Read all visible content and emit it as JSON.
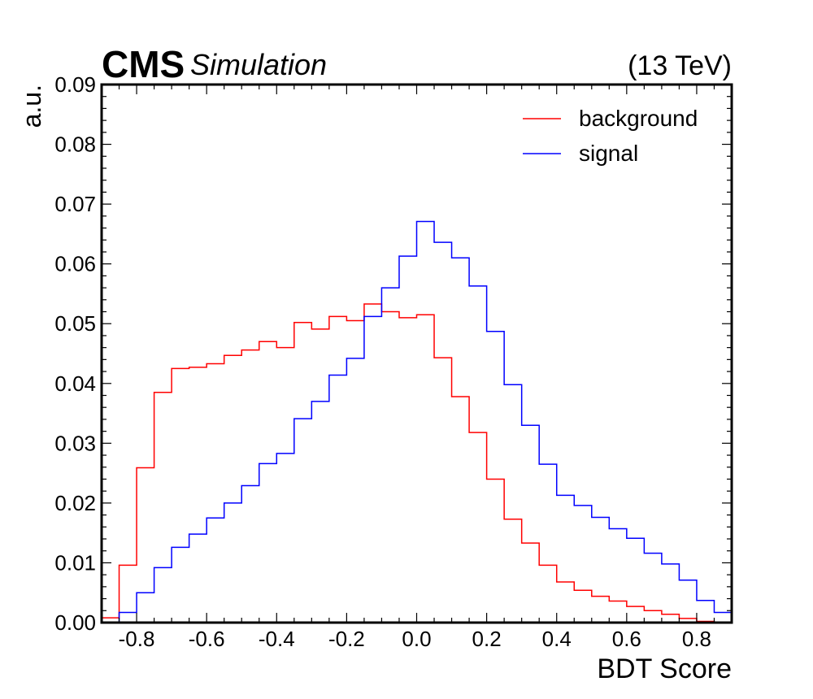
{
  "header": {
    "experiment": "CMS",
    "tag": "Simulation",
    "energy": "(13 TeV)"
  },
  "chart_data": {
    "type": "line",
    "style": "step-histogram",
    "xlabel": "BDT Score",
    "ylabel": "a.u.",
    "xlim": [
      -0.9,
      0.9
    ],
    "ylim": [
      0,
      0.09
    ],
    "x_ticks": [
      "-0.8",
      "-0.6",
      "-0.4",
      "-0.2",
      "0.0",
      "0.2",
      "0.4",
      "0.6",
      "0.8"
    ],
    "x_tick_values": [
      -0.8,
      -0.6,
      -0.4,
      -0.2,
      0.0,
      0.2,
      0.4,
      0.6,
      0.8
    ],
    "y_ticks": [
      "0.00",
      "0.01",
      "0.02",
      "0.03",
      "0.04",
      "0.05",
      "0.06",
      "0.07",
      "0.08",
      "0.09"
    ],
    "y_tick_values": [
      0,
      0.01,
      0.02,
      0.03,
      0.04,
      0.05,
      0.06,
      0.07,
      0.08,
      0.09
    ],
    "grid": false,
    "legend_position": "top-right",
    "bin_edges": [
      -0.9,
      -0.85,
      -0.8,
      -0.75,
      -0.7,
      -0.65,
      -0.6,
      -0.55,
      -0.5,
      -0.45,
      -0.4,
      -0.35,
      -0.3,
      -0.25,
      -0.2,
      -0.15,
      -0.1,
      -0.05,
      0.0,
      0.05,
      0.1,
      0.15,
      0.2,
      0.25,
      0.3,
      0.35,
      0.4,
      0.45,
      0.5,
      0.55,
      0.6,
      0.65,
      0.7,
      0.75,
      0.8,
      0.85,
      0.9
    ],
    "series": [
      {
        "name": "background",
        "color": "#ff0000",
        "values": [
          0.0008,
          0.0096,
          0.0259,
          0.0385,
          0.0425,
          0.0427,
          0.0433,
          0.0447,
          0.0456,
          0.047,
          0.046,
          0.0502,
          0.0491,
          0.0512,
          0.0505,
          0.0533,
          0.052,
          0.051,
          0.0515,
          0.0443,
          0.0378,
          0.0318,
          0.024,
          0.0173,
          0.0133,
          0.0096,
          0.0068,
          0.0054,
          0.0044,
          0.0036,
          0.0027,
          0.002,
          0.0014,
          0.0007,
          0.0002,
          0.0
        ]
      },
      {
        "name": "signal",
        "color": "#0000ff",
        "values": [
          0.0,
          0.0017,
          0.005,
          0.0092,
          0.0126,
          0.0148,
          0.0175,
          0.02,
          0.0229,
          0.0266,
          0.0283,
          0.0341,
          0.037,
          0.0414,
          0.0442,
          0.0512,
          0.056,
          0.0613,
          0.0671,
          0.0636,
          0.061,
          0.0563,
          0.0487,
          0.0398,
          0.033,
          0.0265,
          0.0213,
          0.0196,
          0.0176,
          0.0157,
          0.0141,
          0.0116,
          0.0098,
          0.0071,
          0.0037,
          0.0017
        ]
      }
    ]
  }
}
